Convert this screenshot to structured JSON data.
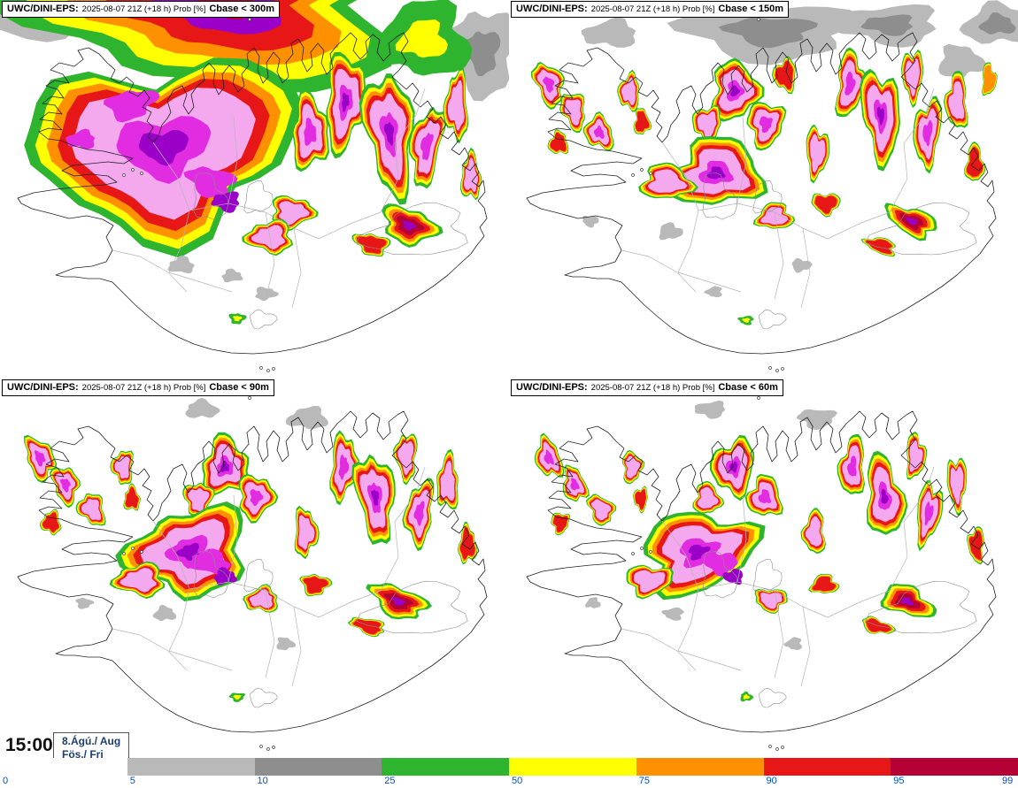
{
  "panels": [
    {
      "model_label": "UWC/DINI-EPS:",
      "run_label": "2025-08-07 21Z (+18 h) Prob [%]",
      "threshold_label": "Cbase < 300m"
    },
    {
      "model_label": "UWC/DINI-EPS:",
      "run_label": "2025-08-07 21Z (+18 h) Prob [%]",
      "threshold_label": "Cbase < 150m"
    },
    {
      "model_label": "UWC/DINI-EPS:",
      "run_label": "2025-08-07 21Z (+18 h) Prob [%]",
      "threshold_label": "Cbase < 90m"
    },
    {
      "model_label": "UWC/DINI-EPS:",
      "run_label": "2025-08-07 21Z (+18 h) Prob [%]",
      "threshold_label": "Cbase < 60m"
    }
  ],
  "footer": {
    "time": "15:00",
    "date_top": "8.Ágú./ Aug",
    "date_bottom": "Fös./ Fri"
  },
  "colorbar": {
    "tick_labels": [
      "0",
      "5",
      "10",
      "25",
      "50",
      "75",
      "90",
      "95",
      "99"
    ],
    "label_color": "#0050c8",
    "segments": [
      {
        "range": "0-5",
        "color": "#ffffff"
      },
      {
        "range": "5-10",
        "color": "#b9b9b9"
      },
      {
        "range": "10-25",
        "color": "#8e8e8e"
      },
      {
        "range": "25-50",
        "color": "#2eb42e"
      },
      {
        "range": "50-75",
        "color": "#ffff00"
      },
      {
        "range": "75-90",
        "color": "#ff9000"
      },
      {
        "range": "90-95",
        "color": "#e81717"
      },
      {
        "range": "95-99",
        "color": "#b50036"
      }
    ]
  },
  "map_colors": {
    "green": "#2eb42e",
    "yellow": "#ffff00",
    "orange": "#ff9000",
    "red": "#e81717",
    "crimson": "#b50036",
    "pink": "#f4a9ee",
    "magenta": "#e12ce1",
    "purple": "#9a00c8",
    "gray1": "#b9b9b9",
    "gray2": "#8e8e8e",
    "coast": "#222222",
    "thin_line": "#b5b5b5",
    "glacier_line": "#8f8f8f"
  }
}
